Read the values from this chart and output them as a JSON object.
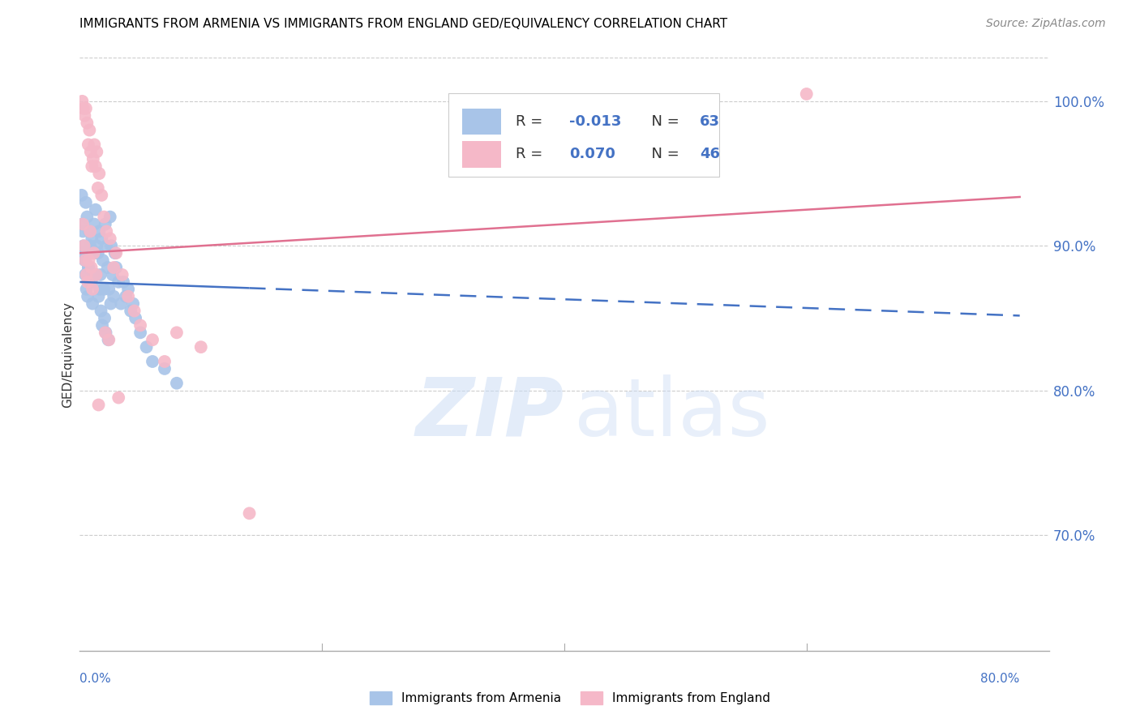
{
  "title": "IMMIGRANTS FROM ARMENIA VS IMMIGRANTS FROM ENGLAND GED/EQUIVALENCY CORRELATION CHART",
  "source": "Source: ZipAtlas.com",
  "ylabel": "GED/Equivalency",
  "xmin": 0.0,
  "xmax": 80.0,
  "ymin": 62.0,
  "ymax": 103.0,
  "armenia_color": "#a8c4e8",
  "england_color": "#f5b8c8",
  "armenia_line_color": "#4472c4",
  "england_line_color": "#e07090",
  "legend_text_color": "#4472c4",
  "grid_color": "#cccccc",
  "ytick_vals": [
    70,
    80,
    90,
    100
  ],
  "ytick_labels": [
    "70.0%",
    "80.0%",
    "90.0%",
    "100.0%"
  ],
  "armenia_R": -0.013,
  "armenia_N": 63,
  "england_R": 0.07,
  "england_N": 46,
  "armenia_line_y0": 87.5,
  "armenia_line_slope": -0.03,
  "england_line_y0": 89.5,
  "england_line_slope": 0.05,
  "armenia_solid_xmax": 14.0,
  "armenia_scatter_x": [
    0.2,
    0.3,
    0.4,
    0.5,
    0.6,
    0.7,
    0.8,
    0.9,
    1.0,
    1.1,
    1.2,
    1.3,
    1.4,
    1.5,
    1.6,
    1.7,
    1.8,
    1.9,
    2.0,
    2.1,
    2.2,
    2.3,
    2.4,
    2.5,
    2.6,
    2.7,
    2.8,
    2.9,
    3.0,
    3.2,
    3.4,
    3.6,
    3.8,
    4.0,
    4.2,
    4.4,
    4.6,
    5.0,
    5.5,
    6.0,
    7.0,
    8.0,
    0.15,
    0.25,
    0.35,
    0.45,
    0.55,
    0.65,
    0.75,
    0.85,
    0.95,
    1.05,
    1.15,
    1.25,
    1.35,
    1.55,
    1.65,
    1.75,
    1.85,
    2.05,
    2.15,
    2.35,
    2.55
  ],
  "armenia_scatter_y": [
    91.5,
    90.0,
    89.0,
    93.0,
    92.0,
    88.5,
    91.0,
    87.5,
    90.5,
    89.5,
    91.5,
    92.5,
    90.0,
    89.5,
    91.0,
    88.0,
    90.5,
    89.0,
    87.0,
    91.5,
    90.0,
    88.5,
    87.0,
    92.0,
    90.0,
    88.0,
    86.5,
    89.5,
    88.5,
    87.5,
    86.0,
    87.5,
    86.5,
    87.0,
    85.5,
    86.0,
    85.0,
    84.0,
    83.0,
    82.0,
    81.5,
    80.5,
    93.5,
    91.0,
    89.5,
    88.0,
    87.0,
    86.5,
    88.5,
    90.0,
    87.5,
    86.0,
    88.0,
    89.5,
    88.0,
    86.5,
    87.0,
    85.5,
    84.5,
    85.0,
    84.0,
    83.5,
    86.0
  ],
  "england_scatter_x": [
    0.2,
    0.3,
    0.4,
    0.5,
    0.6,
    0.7,
    0.8,
    0.9,
    1.0,
    1.1,
    1.2,
    1.3,
    1.4,
    1.5,
    1.6,
    1.8,
    2.0,
    2.2,
    2.5,
    2.8,
    3.0,
    3.5,
    4.0,
    4.5,
    5.0,
    6.0,
    7.0,
    8.0,
    10.0,
    14.0,
    60.0,
    0.25,
    0.35,
    0.45,
    0.55,
    0.65,
    0.75,
    0.85,
    0.95,
    1.05,
    1.15,
    1.35,
    1.55,
    2.1,
    2.4,
    3.2
  ],
  "england_scatter_y": [
    100.0,
    99.5,
    99.0,
    99.5,
    98.5,
    97.0,
    98.0,
    96.5,
    95.5,
    96.0,
    97.0,
    95.5,
    96.5,
    94.0,
    95.0,
    93.5,
    92.0,
    91.0,
    90.5,
    88.5,
    89.5,
    88.0,
    86.5,
    85.5,
    84.5,
    83.5,
    82.0,
    84.0,
    83.0,
    71.5,
    100.5,
    91.5,
    90.0,
    89.0,
    88.0,
    87.5,
    89.0,
    91.0,
    88.5,
    87.0,
    89.5,
    88.0,
    79.0,
    84.0,
    83.5,
    79.5
  ]
}
